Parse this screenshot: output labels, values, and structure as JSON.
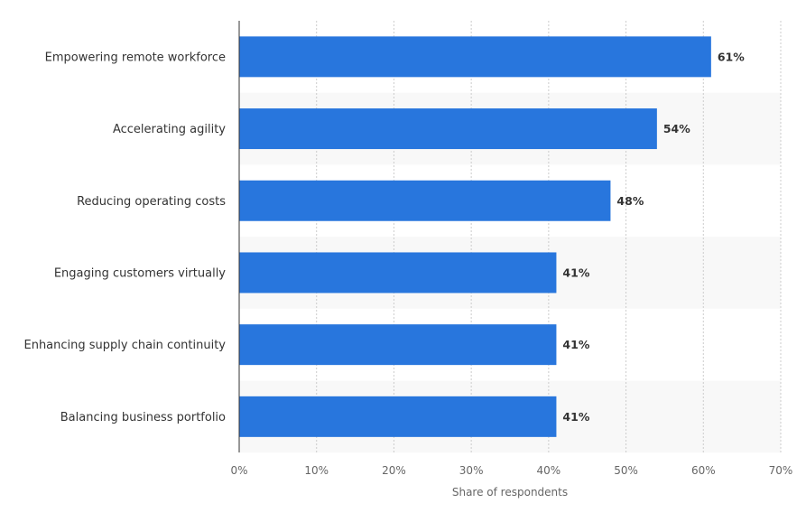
{
  "chart_data": {
    "type": "bar",
    "orientation": "horizontal",
    "categories": [
      "Empowering remote workforce",
      "Accelerating agility",
      "Reducing operating costs",
      "Engaging customers virtually",
      "Enhancing supply chain continuity",
      "Balancing business portfolio"
    ],
    "values": [
      61,
      54,
      48,
      41,
      41,
      41
    ],
    "value_labels": [
      "61%",
      "54%",
      "48%",
      "41%",
      "41%",
      "41%"
    ],
    "xlabel": "Share of respondents",
    "ylabel": "",
    "xlim": [
      0,
      70
    ],
    "ticks": [
      0,
      10,
      20,
      30,
      40,
      50,
      60,
      70
    ],
    "tick_labels": [
      "0%",
      "10%",
      "20%",
      "30%",
      "40%",
      "50%",
      "60%",
      "70%"
    ],
    "grid": true,
    "colors": {
      "bar": "#2876dd",
      "band": "#f8f8f8",
      "grid": "#cccccc"
    }
  }
}
